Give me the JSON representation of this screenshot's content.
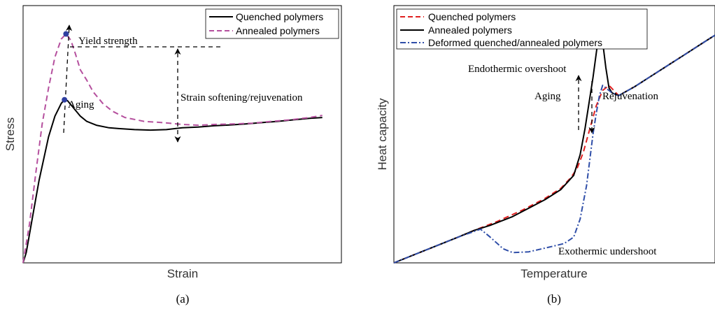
{
  "chart_data": [
    {
      "type": "line",
      "caption": "(a)",
      "xlabel": "Strain",
      "ylabel": "Stress",
      "xlim": [
        0,
        100
      ],
      "ylim": [
        0,
        100
      ],
      "grid": false,
      "legend_position": "top-right",
      "series": [
        {
          "name": "Quenched polymers",
          "color": "#000000",
          "style": "solid",
          "points": [
            [
              0,
              0
            ],
            [
              1,
              4
            ],
            [
              3,
              18
            ],
            [
              5,
              32
            ],
            [
              8,
              49
            ],
            [
              10,
              57
            ],
            [
              12,
              62
            ],
            [
              13,
              63.4
            ],
            [
              14,
              63
            ],
            [
              16,
              60
            ],
            [
              18,
              57
            ],
            [
              20,
              55
            ],
            [
              23,
              53.5
            ],
            [
              27,
              52.5
            ],
            [
              30,
              52.2
            ],
            [
              35,
              51.8
            ],
            [
              40,
              51.6
            ],
            [
              45,
              51.8
            ],
            [
              50,
              52.5
            ],
            [
              55,
              52.8
            ],
            [
              60,
              53.3
            ],
            [
              65,
              53.6
            ],
            [
              70,
              54
            ],
            [
              75,
              54.5
            ],
            [
              80,
              55
            ],
            [
              85,
              55.6
            ],
            [
              90,
              56.2
            ],
            [
              94,
              56.5
            ]
          ]
        },
        {
          "name": "Annealed polymers",
          "color": "#b5509e",
          "style": "dashed",
          "points": [
            [
              0,
              0
            ],
            [
              2,
              15
            ],
            [
              4,
              35
            ],
            [
              6,
              54
            ],
            [
              8,
              68
            ],
            [
              10,
              80
            ],
            [
              12,
              87
            ],
            [
              13.5,
              89
            ],
            [
              15,
              86.5
            ],
            [
              16.5,
              81
            ],
            [
              18,
              75
            ],
            [
              20,
              71
            ],
            [
              22,
              66.5
            ],
            [
              25,
              62
            ],
            [
              28,
              59
            ],
            [
              32,
              56.5
            ],
            [
              38,
              55
            ],
            [
              44,
              54.5
            ],
            [
              50,
              53.8
            ],
            [
              55,
              53.5
            ],
            [
              60,
              53.8
            ],
            [
              66,
              54
            ],
            [
              72,
              54.3
            ],
            [
              78,
              55
            ],
            [
              84,
              55.6
            ],
            [
              90,
              56.5
            ],
            [
              94,
              57.3
            ]
          ]
        }
      ],
      "markers": [
        {
          "x": 13,
          "y": 63.4,
          "label": "Aging"
        },
        {
          "x": 13.5,
          "y": 89,
          "label": "Yield strength"
        }
      ],
      "annotations": [
        {
          "text": "Yield strength"
        },
        {
          "text": "Aging"
        },
        {
          "text": "Strain softening/rejuvenation"
        }
      ]
    },
    {
      "type": "line",
      "caption": "(b)",
      "xlabel": "Temperature",
      "ylabel": "Heat capacity",
      "xlim": [
        0,
        100
      ],
      "ylim": [
        0,
        100
      ],
      "grid": false,
      "legend_position": "top-left",
      "series": [
        {
          "name": "Quenched polymers",
          "color": "#e02020",
          "style": "dashed",
          "points": [
            [
              0,
              0
            ],
            [
              10,
              5
            ],
            [
              20,
              10
            ],
            [
              25,
              12.6
            ],
            [
              32,
              16
            ],
            [
              40,
              20.5
            ],
            [
              47,
              25
            ],
            [
              52,
              29
            ],
            [
              55,
              33
            ],
            [
              57,
              36.5
            ],
            [
              59,
              43
            ],
            [
              61,
              52
            ],
            [
              63,
              61
            ],
            [
              65,
              67
            ],
            [
              67,
              69
            ],
            [
              70,
              65
            ],
            [
              75,
              68.5
            ],
            [
              80,
              72.5
            ],
            [
              85,
              76.5
            ],
            [
              90,
              80.5
            ],
            [
              95,
              84.5
            ],
            [
              100,
              88.5
            ]
          ]
        },
        {
          "name": "Annealed polymers",
          "color": "#000000",
          "style": "solid",
          "points": [
            [
              0,
              0
            ],
            [
              10,
              5
            ],
            [
              20,
              10
            ],
            [
              25,
              12.6
            ],
            [
              30,
              14.6
            ],
            [
              37,
              18
            ],
            [
              47,
              24.5
            ],
            [
              52,
              28.5
            ],
            [
              56,
              34
            ],
            [
              58,
              42
            ],
            [
              59.5,
              52
            ],
            [
              60.5,
              60
            ],
            [
              62,
              72
            ],
            [
              63.5,
              86
            ],
            [
              64.5,
              91
            ],
            [
              66,
              76
            ],
            [
              67,
              68
            ],
            [
              68,
              66
            ],
            [
              70,
              65
            ],
            [
              75,
              68.5
            ],
            [
              80,
              72.5
            ],
            [
              85,
              76.5
            ],
            [
              90,
              80.5
            ],
            [
              95,
              84.5
            ],
            [
              100,
              88.5
            ]
          ]
        },
        {
          "name": "Deformed quenched/annealed polymers",
          "color": "#2f4ea8",
          "style": "dashdot",
          "points": [
            [
              0,
              0
            ],
            [
              10,
              5
            ],
            [
              20,
              10
            ],
            [
              27,
              13.1
            ],
            [
              30,
              10
            ],
            [
              34,
              5.5
            ],
            [
              37,
              4
            ],
            [
              42,
              4.3
            ],
            [
              48,
              6
            ],
            [
              53,
              7.5
            ],
            [
              56,
              10
            ],
            [
              58,
              17
            ],
            [
              60,
              30
            ],
            [
              61,
              40
            ],
            [
              62,
              50
            ],
            [
              63,
              58
            ],
            [
              64,
              65
            ],
            [
              65,
              69
            ],
            [
              66.5,
              67.5
            ],
            [
              68,
              66
            ],
            [
              70,
              65
            ],
            [
              75,
              68.5
            ],
            [
              80,
              72.5
            ],
            [
              85,
              76.5
            ],
            [
              90,
              80.5
            ],
            [
              95,
              84.5
            ],
            [
              100,
              88.5
            ]
          ]
        }
      ],
      "annotations": [
        {
          "text": "Endothermic overshoot"
        },
        {
          "text": "Aging"
        },
        {
          "text": "Rejuvenation"
        },
        {
          "text": "Exothermic undershoot"
        }
      ]
    }
  ]
}
